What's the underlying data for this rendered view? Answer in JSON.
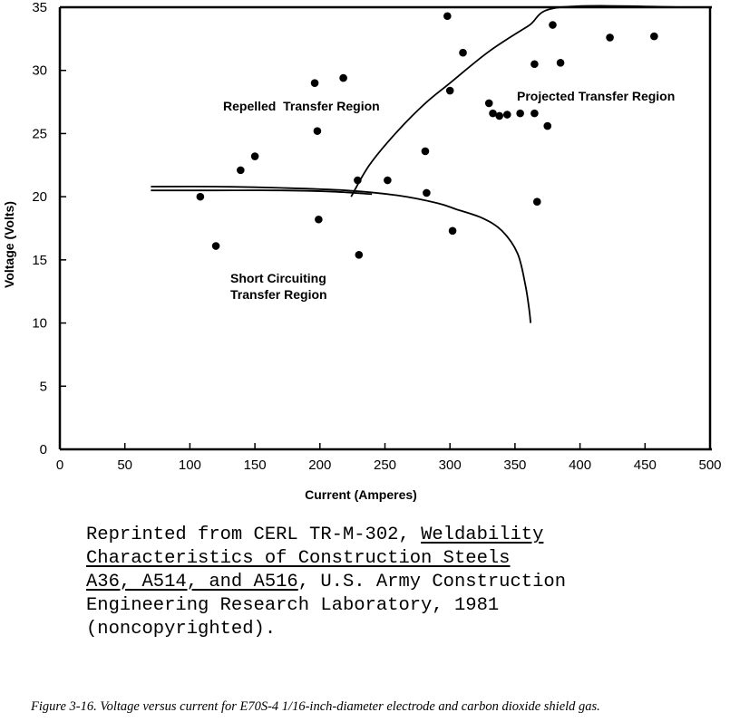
{
  "chart_data": {
    "type": "scatter",
    "xlabel": "Current (Amperes)",
    "ylabel": "Voltage (Volts)",
    "xlim": [
      0,
      500
    ],
    "ylim": [
      0,
      35
    ],
    "x_ticks": [
      "0",
      "50",
      "100",
      "150",
      "200",
      "250",
      "300",
      "350",
      "400",
      "450",
      "500"
    ],
    "y_ticks": [
      "0",
      "5",
      "10",
      "15",
      "20",
      "25",
      "30",
      "35"
    ],
    "grid": false,
    "legend": "none",
    "points": [
      {
        "x": 108,
        "y": 20.0
      },
      {
        "x": 120,
        "y": 16.1
      },
      {
        "x": 139,
        "y": 22.1
      },
      {
        "x": 150,
        "y": 23.2
      },
      {
        "x": 196,
        "y": 29.0
      },
      {
        "x": 198,
        "y": 25.2
      },
      {
        "x": 199,
        "y": 18.2
      },
      {
        "x": 218,
        "y": 29.4
      },
      {
        "x": 229,
        "y": 21.3
      },
      {
        "x": 230,
        "y": 15.4
      },
      {
        "x": 252,
        "y": 21.3
      },
      {
        "x": 281,
        "y": 23.6
      },
      {
        "x": 282,
        "y": 20.3
      },
      {
        "x": 298,
        "y": 34.3
      },
      {
        "x": 300,
        "y": 28.4
      },
      {
        "x": 302,
        "y": 17.3
      },
      {
        "x": 310,
        "y": 31.4
      },
      {
        "x": 330,
        "y": 27.4
      },
      {
        "x": 333,
        "y": 26.6
      },
      {
        "x": 338,
        "y": 26.4
      },
      {
        "x": 344,
        "y": 26.5
      },
      {
        "x": 354,
        "y": 26.6
      },
      {
        "x": 365,
        "y": 26.6
      },
      {
        "x": 365,
        "y": 30.5
      },
      {
        "x": 367,
        "y": 19.6
      },
      {
        "x": 375,
        "y": 25.6
      },
      {
        "x": 379,
        "y": 33.6
      },
      {
        "x": 385,
        "y": 30.6
      },
      {
        "x": 423,
        "y": 32.6
      },
      {
        "x": 457,
        "y": 32.7
      }
    ],
    "boundaries": [
      {
        "name": "short-circuit-upper-boundary",
        "points": [
          [
            70,
            20.8
          ],
          [
            120,
            20.8
          ],
          [
            170,
            20.7
          ],
          [
            220,
            20.5
          ],
          [
            260,
            20.1
          ],
          [
            290,
            19.5
          ],
          [
            305,
            19.0
          ],
          [
            325,
            18.3
          ],
          [
            340,
            17.3
          ],
          [
            352,
            15.5
          ],
          [
            358,
            13.0
          ],
          [
            361,
            11.0
          ],
          [
            362,
            10.0
          ]
        ]
      },
      {
        "name": "short-circuit-inner-line",
        "points": [
          [
            70,
            20.5
          ],
          [
            120,
            20.5
          ],
          [
            170,
            20.5
          ],
          [
            210,
            20.4
          ],
          [
            240,
            20.2
          ]
        ]
      },
      {
        "name": "repelled-projected-boundary",
        "points": [
          [
            224,
            20.0
          ],
          [
            238,
            22.5
          ],
          [
            258,
            25.0
          ],
          [
            280,
            27.3
          ],
          [
            300,
            29.0
          ],
          [
            330,
            31.5
          ],
          [
            360,
            33.5
          ],
          [
            385,
            35.0
          ],
          [
            485,
            35.0
          ]
        ]
      }
    ],
    "annotations": [
      "Repelled  Transfer Region",
      "Projected Transfer Region",
      "Short Circuiting",
      "Transfer Region"
    ]
  },
  "citation": {
    "line1_prefix": "Reprinted from CERL TR-M-302, ",
    "line1_title": "Weldability",
    "line2_title": "Characteristics of Construction Steels",
    "line3_title": "A36, A514, and A516",
    "line3_suffix": ", U.S. Army Construction",
    "line4": "Engineering Research Laboratory, 1981",
    "line5": "(noncopyrighted)."
  },
  "caption": "Figure 3-16. Voltage versus current for E70S-4 1/16-inch-diameter electrode and carbon dioxide shield gas."
}
